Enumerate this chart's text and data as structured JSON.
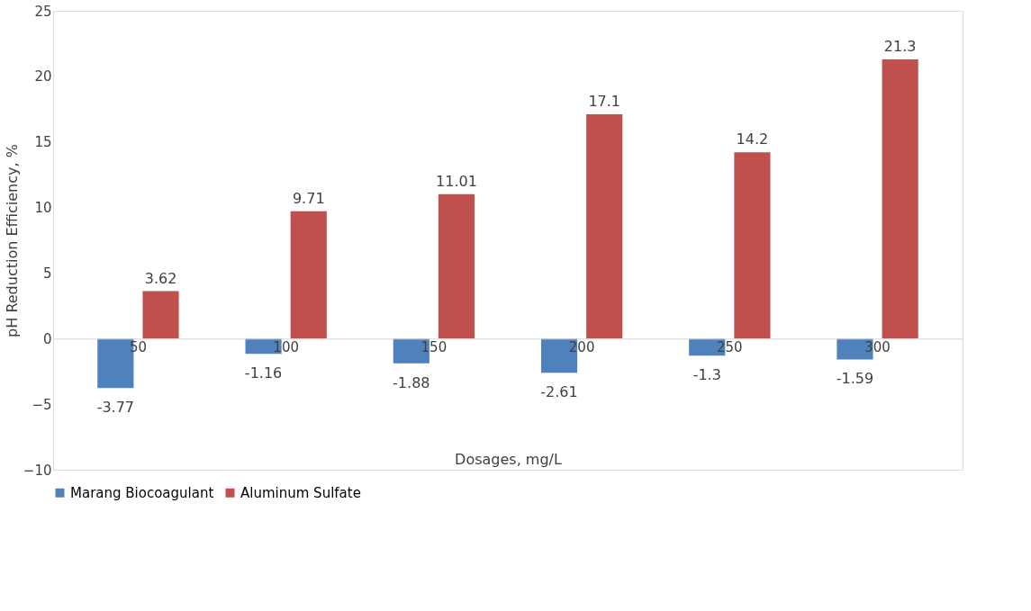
{
  "chart_data": {
    "type": "bar",
    "xlabel": "Dosages, mg/L",
    "ylabel": "pH Reduction Efficiency, %",
    "categories": [
      "50",
      "100",
      "150",
      "200",
      "250",
      "300"
    ],
    "series": [
      {
        "name": "Marang Biocoagulant",
        "color": "#4f81bd",
        "values": [
          -3.77,
          -1.16,
          -1.88,
          -2.61,
          -1.3,
          -1.59
        ]
      },
      {
        "name": "Aluminum Sulfate",
        "color": "#c0504d",
        "values": [
          3.62,
          9.71,
          11.01,
          17.1,
          14.2,
          21.3
        ]
      }
    ],
    "ylim": [
      -10,
      25
    ],
    "yticks": [
      -10,
      -5,
      0,
      5,
      10,
      15,
      20,
      25
    ],
    "grid": false,
    "legend": "bottom",
    "data_labels": true
  }
}
